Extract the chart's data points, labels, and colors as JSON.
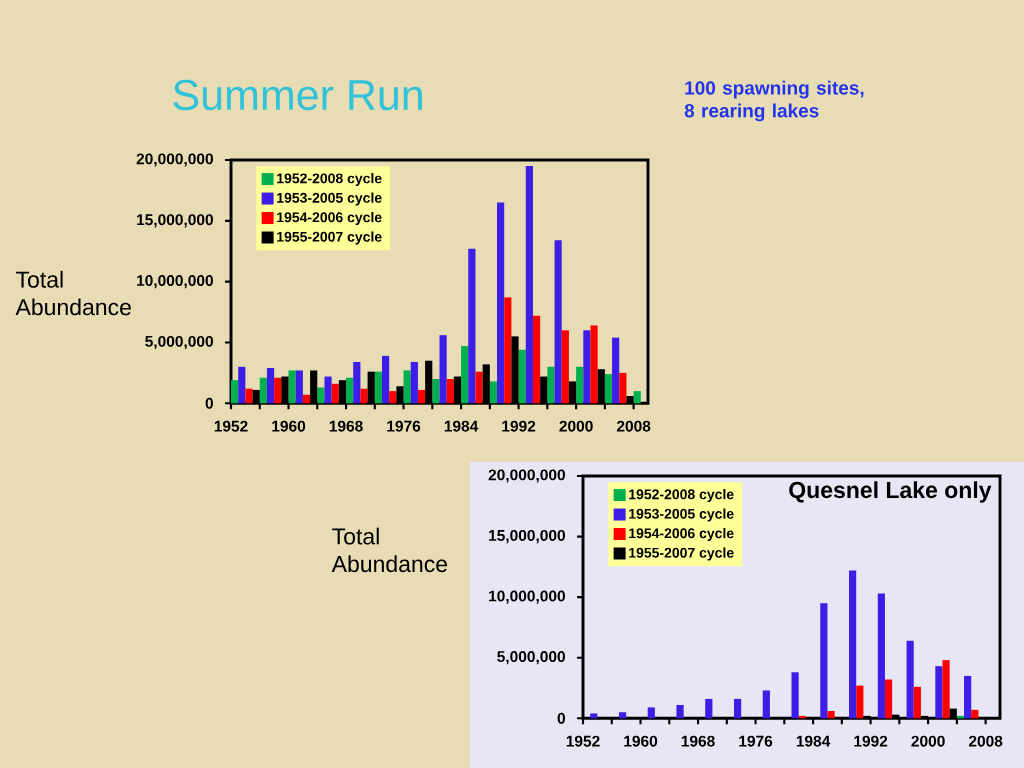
{
  "chart_data": [
    {
      "type": "bar",
      "title": "Summer Run",
      "ylabel": "Total Abundance",
      "annotations": [
        "100 spawning sites, 8 rearing lakes"
      ],
      "xlim": [
        1952,
        2010
      ],
      "xticks": [
        1952,
        {
          "value": 1956,
          "label": null
        },
        1960,
        {
          "value": 1964,
          "label": null
        },
        1968,
        {
          "value": 1972,
          "label": null
        },
        1976,
        {
          "value": 1980,
          "label": null
        },
        1984,
        {
          "value": 1988,
          "label": null
        },
        1992,
        {
          "value": 1996,
          "label": null
        },
        2000,
        {
          "value": 2004,
          "label": null
        },
        2008
      ],
      "ylim": [
        0,
        20000000
      ],
      "yticks": [
        0,
        {
          "value": 5000000,
          "label": "5,000,000"
        },
        {
          "value": 10000000,
          "label": "10,000,000"
        },
        {
          "value": 15000000,
          "label": "15,000,000"
        },
        {
          "value": 20000000,
          "label": "20,000,000"
        }
      ],
      "legend": "top left",
      "series": [
        {
          "name": "1952-2008 cycle",
          "color": "#00b050",
          "x": [
            1952,
            1956,
            1960,
            1964,
            1968,
            1972,
            1976,
            1980,
            1984,
            1988,
            1992,
            1996,
            2000,
            2004,
            2008
          ],
          "values": [
            1900000,
            2100000,
            2700000,
            1300000,
            2100000,
            2600000,
            2700000,
            2000000,
            4700000,
            1800000,
            4400000,
            3000000,
            3000000,
            2400000,
            1000000
          ]
        },
        {
          "name": "1953-2005 cycle",
          "color": "#3c1ee6",
          "x": [
            1953,
            1957,
            1961,
            1965,
            1969,
            1973,
            1977,
            1981,
            1985,
            1989,
            1993,
            1997,
            2001,
            2005
          ],
          "values": [
            3000000,
            2900000,
            2700000,
            2200000,
            3400000,
            3900000,
            3400000,
            5600000,
            12700000,
            16500000,
            19500000,
            13400000,
            6000000,
            5400000
          ]
        },
        {
          "name": "1954-2006 cycle",
          "color": "#ff0000",
          "x": [
            1954,
            1958,
            1962,
            1966,
            1970,
            1974,
            1978,
            1982,
            1986,
            1990,
            1994,
            1998,
            2002,
            2006
          ],
          "values": [
            1200000,
            2100000,
            700000,
            1600000,
            1200000,
            1000000,
            1100000,
            2000000,
            2600000,
            8700000,
            7200000,
            6000000,
            6400000,
            2500000
          ]
        },
        {
          "name": "1955-2007 cycle",
          "color": "#000000",
          "x": [
            1955,
            1959,
            1963,
            1967,
            1971,
            1975,
            1979,
            1983,
            1987,
            1991,
            1995,
            1999,
            2003,
            2007
          ],
          "values": [
            1100000,
            2200000,
            2700000,
            1900000,
            2600000,
            1400000,
            3500000,
            2200000,
            3200000,
            5500000,
            2200000,
            1800000,
            2800000,
            600000
          ]
        }
      ]
    },
    {
      "type": "bar",
      "title": "Quesnel Lake only",
      "ylabel": "Total Abundance",
      "xlim": [
        1952,
        2010
      ],
      "xticks": [
        1952,
        {
          "value": 1956,
          "label": null
        },
        1960,
        {
          "value": 1964,
          "label": null
        },
        1968,
        {
          "value": 1972,
          "label": null
        },
        1976,
        {
          "value": 1980,
          "label": null
        },
        1984,
        {
          "value": 1988,
          "label": null
        },
        1992,
        {
          "value": 1996,
          "label": null
        },
        2000,
        {
          "value": 2004,
          "label": null
        },
        2008
      ],
      "ylim": [
        0,
        20000000
      ],
      "yticks": [
        0,
        {
          "value": 5000000,
          "label": "5,000,000"
        },
        {
          "value": 10000000,
          "label": "10,000,000"
        },
        {
          "value": 15000000,
          "label": "15,000,000"
        },
        {
          "value": 20000000,
          "label": "20,000,000"
        }
      ],
      "legend": "top left",
      "series": [
        {
          "name": "1952-2008 cycle",
          "color": "#00b050",
          "x": [
            2004
          ],
          "values": [
            200000
          ]
        },
        {
          "name": "1953-2005 cycle",
          "color": "#3c1ee6",
          "x": [
            1953,
            1957,
            1961,
            1965,
            1969,
            1973,
            1977,
            1981,
            1985,
            1989,
            1993,
            1997,
            2001,
            2005
          ],
          "values": [
            400000,
            500000,
            900000,
            1100000,
            1600000,
            1600000,
            2300000,
            3800000,
            9500000,
            12200000,
            10300000,
            6400000,
            4300000,
            3500000
          ]
        },
        {
          "name": "1954-2006 cycle",
          "color": "#ff0000",
          "x": [
            1982,
            1986,
            1990,
            1994,
            1998,
            2002,
            2006
          ],
          "values": [
            200000,
            600000,
            2700000,
            3200000,
            2600000,
            4800000,
            700000
          ]
        },
        {
          "name": "1955-2007 cycle",
          "color": "#000000",
          "x": [
            1991,
            1995,
            1999,
            2003
          ],
          "values": [
            200000,
            300000,
            200000,
            800000
          ]
        }
      ]
    }
  ]
}
